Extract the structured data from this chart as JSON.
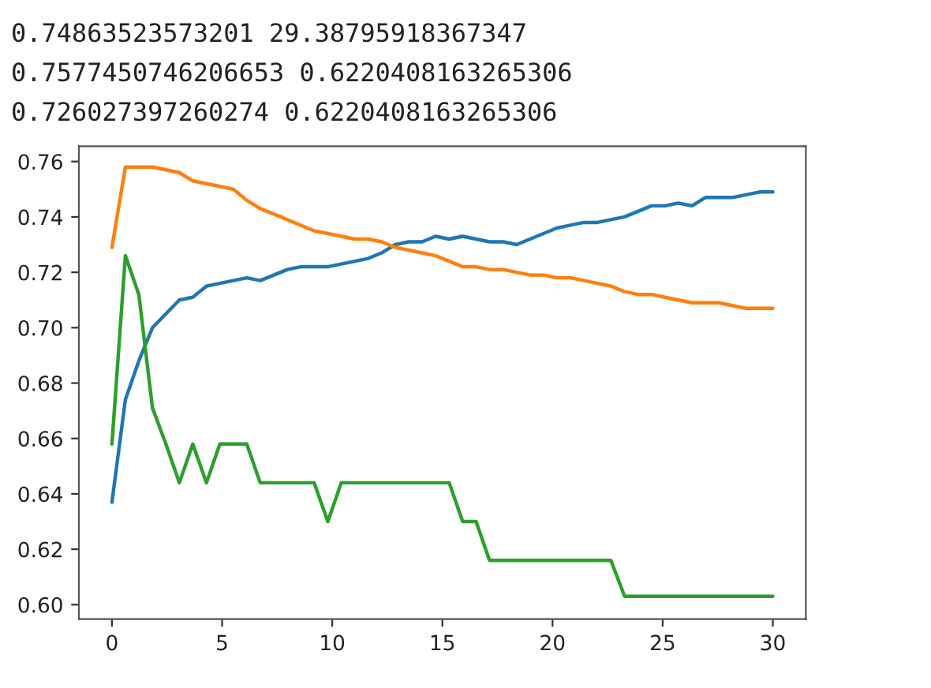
{
  "chart_data": {
    "type": "line",
    "annotations": [
      "0.74863523573201 29.38795918367347",
      "0.7577450746206653 0.6220408163265306",
      "0.726027397260274 0.6220408163265306"
    ],
    "x": [
      0,
      0.61,
      1.22,
      1.84,
      2.45,
      3.06,
      3.67,
      4.29,
      4.9,
      5.51,
      6.12,
      6.73,
      7.35,
      7.96,
      8.57,
      9.18,
      9.8,
      10.41,
      11.02,
      11.63,
      12.24,
      12.86,
      13.47,
      14.08,
      14.69,
      15.31,
      15.92,
      16.53,
      17.14,
      17.76,
      18.37,
      18.98,
      19.59,
      20.2,
      20.82,
      21.43,
      22.04,
      22.65,
      23.27,
      23.88,
      24.49,
      25.1,
      25.71,
      26.33,
      26.94,
      27.55,
      28.16,
      28.78,
      29.39,
      30
    ],
    "series": [
      {
        "color": "#1f77b4",
        "values": [
          0.637,
          0.674,
          0.688,
          0.7,
          0.705,
          0.71,
          0.711,
          0.715,
          0.716,
          0.717,
          0.718,
          0.717,
          0.719,
          0.721,
          0.722,
          0.722,
          0.722,
          0.723,
          0.724,
          0.725,
          0.727,
          0.73,
          0.731,
          0.731,
          0.733,
          0.732,
          0.733,
          0.732,
          0.731,
          0.731,
          0.73,
          0.732,
          0.734,
          0.736,
          0.737,
          0.738,
          0.738,
          0.739,
          0.74,
          0.742,
          0.744,
          0.744,
          0.745,
          0.744,
          0.747,
          0.747,
          0.747,
          0.748,
          0.749,
          0.749
        ]
      },
      {
        "color": "#ff7f0e",
        "values": [
          0.729,
          0.758,
          0.758,
          0.758,
          0.757,
          0.756,
          0.753,
          0.752,
          0.751,
          0.75,
          0.746,
          0.743,
          0.741,
          0.739,
          0.737,
          0.735,
          0.734,
          0.733,
          0.732,
          0.732,
          0.731,
          0.729,
          0.728,
          0.727,
          0.726,
          0.724,
          0.722,
          0.722,
          0.721,
          0.721,
          0.72,
          0.719,
          0.719,
          0.718,
          0.718,
          0.717,
          0.716,
          0.715,
          0.713,
          0.712,
          0.712,
          0.711,
          0.71,
          0.709,
          0.709,
          0.709,
          0.708,
          0.707,
          0.707,
          0.707
        ]
      },
      {
        "color": "#2ca02c",
        "values": [
          0.658,
          0.726,
          0.712,
          0.671,
          0.658,
          0.644,
          0.658,
          0.644,
          0.658,
          0.658,
          0.658,
          0.644,
          0.644,
          0.644,
          0.644,
          0.644,
          0.63,
          0.644,
          0.644,
          0.644,
          0.644,
          0.644,
          0.644,
          0.644,
          0.644,
          0.644,
          0.63,
          0.63,
          0.616,
          0.616,
          0.616,
          0.616,
          0.616,
          0.616,
          0.616,
          0.616,
          0.616,
          0.616,
          0.603,
          0.603,
          0.603,
          0.603,
          0.603,
          0.603,
          0.603,
          0.603,
          0.603,
          0.603,
          0.603,
          0.603
        ]
      }
    ],
    "xlim": [
      -1.5,
      31.5
    ],
    "xticks": [
      0,
      5,
      10,
      15,
      20,
      25,
      30
    ],
    "ylim": [
      0.5948,
      0.7655
    ],
    "yticks": [
      {
        "value": 0.6,
        "label": "0.60"
      },
      0.62,
      0.64,
      0.66,
      0.68,
      {
        "value": 0.7,
        "label": "0.70"
      },
      0.72,
      0.74,
      0.76
    ]
  }
}
